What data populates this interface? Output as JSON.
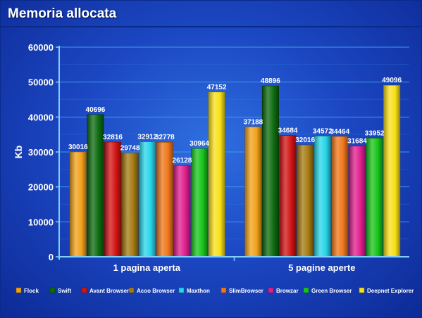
{
  "title": "Memoria allocata",
  "chart_data": {
    "type": "bar",
    "title": "Memoria allocata",
    "xlabel": "",
    "ylabel": "Kb",
    "ylim": [
      0,
      60000
    ],
    "yticks": [
      0,
      10000,
      20000,
      30000,
      40000,
      50000,
      60000
    ],
    "grid": true,
    "legend_position": "bottom",
    "categories": [
      "1 pagina aperta",
      "5 pagine aperte"
    ],
    "series": [
      {
        "name": "Flock",
        "values": [
          30016,
          37188
        ],
        "color": "#f2a21a"
      },
      {
        "name": "Swift",
        "values": [
          40696,
          48896
        ],
        "color": "#0d6b10"
      },
      {
        "name": "Avant Browser",
        "values": [
          32816,
          34684
        ],
        "color": "#d11414"
      },
      {
        "name": "Acoo Browser",
        "values": [
          29748,
          32016
        ],
        "color": "#a57a12"
      },
      {
        "name": "Maxthon",
        "values": [
          32912,
          34572
        ],
        "color": "#28d6ea"
      },
      {
        "name": "SlimBrowser",
        "values": [
          32778,
          34464
        ],
        "color": "#f0771a"
      },
      {
        "name": "Browzar",
        "values": [
          26128,
          31684
        ],
        "color": "#e01e8e"
      },
      {
        "name": "Green Browser",
        "values": [
          30964,
          33952
        ],
        "color": "#18c41a"
      },
      {
        "name": "Deepnet Explorer",
        "values": [
          47152,
          49096
        ],
        "color": "#f8e018"
      }
    ]
  }
}
